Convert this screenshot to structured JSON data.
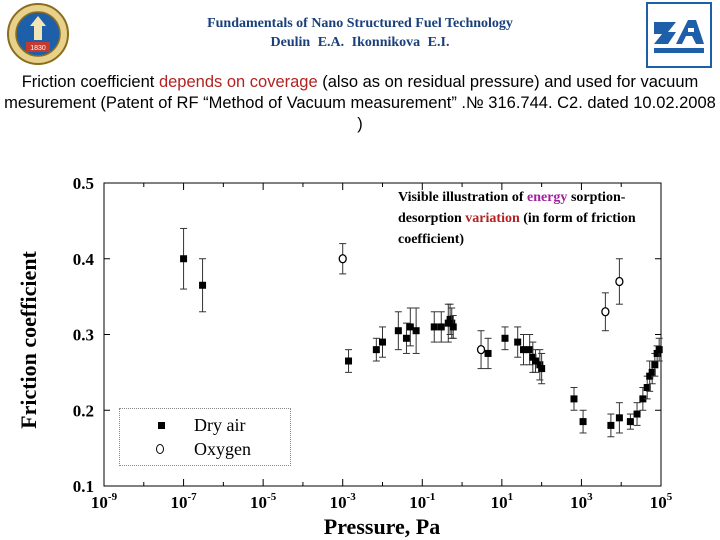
{
  "header": {
    "line1": "Fundamentals of Nano Structured Fuel Technology",
    "line2": "Deulin E.A. Ikonnikova E.I."
  },
  "logo_left": {
    "text": "1830"
  },
  "colors": {
    "header": "#1a3f7a",
    "highlight": "#b32222",
    "annotation_energy": "#a21e9a",
    "logo_blue": "#1d5fa8"
  },
  "description": {
    "t1": "Friction coefficient ",
    "t2": "depends on coverage",
    "t3": " (also as on residual pressure) and used for vacuum mesurement (Patent of RF “Method of  Vacuum measurement” .№ 316.744. C2. dated 10.02.2008 )"
  },
  "annotation": {
    "a1": "Visible illustration of ",
    "a2": "energy",
    "a3": " sorption-desorption ",
    "a4": "variation",
    "a5": " (in form of friction coefficient)"
  },
  "chart_data": {
    "type": "scatter",
    "xlabel": "Pressure, Pa",
    "ylabel": "Friction coefficient",
    "x_scale": "log",
    "xlim": [
      1e-09,
      100000.0
    ],
    "ylim": [
      0.1,
      0.5
    ],
    "x_ticks": [
      {
        "base": "10",
        "exp": "-9",
        "value": -9
      },
      {
        "base": "10",
        "exp": "-7",
        "value": -7
      },
      {
        "base": "10",
        "exp": "-5",
        "value": -5
      },
      {
        "base": "10",
        "exp": "-3",
        "value": -3
      },
      {
        "base": "10",
        "exp": "-1",
        "value": -1
      },
      {
        "base": "10",
        "exp": "1",
        "value": 1
      },
      {
        "base": "10",
        "exp": "3",
        "value": 3
      },
      {
        "base": "10",
        "exp": "5",
        "value": 5
      }
    ],
    "y_ticks": [
      "0.1",
      "0.2",
      "0.3",
      "0.4",
      "0.5"
    ],
    "grid": false,
    "legend": {
      "position": "bottom-left",
      "entries": [
        "Dry air",
        "Oxygen"
      ]
    },
    "series": [
      {
        "name": "Dry air",
        "marker": "square",
        "points": [
          [
            1e-07,
            0.4,
            0.04
          ],
          [
            3e-07,
            0.365,
            0.035
          ],
          [
            0.0014,
            0.265,
            0.015
          ],
          [
            0.007,
            0.28,
            0.015
          ],
          [
            0.01,
            0.29,
            0.02
          ],
          [
            0.025,
            0.305,
            0.025
          ],
          [
            0.04,
            0.295,
            0.02
          ],
          [
            0.05,
            0.31,
            0.025
          ],
          [
            0.07,
            0.305,
            0.03
          ],
          [
            0.2,
            0.31,
            0.02
          ],
          [
            0.3,
            0.31,
            0.02
          ],
          [
            0.45,
            0.315,
            0.025
          ],
          [
            0.5,
            0.32,
            0.02
          ],
          [
            0.55,
            0.315,
            0.02
          ],
          [
            0.6,
            0.31,
            0.015
          ],
          [
            4.5,
            0.275,
            0.02
          ],
          [
            12,
            0.295,
            0.015
          ],
          [
            25,
            0.29,
            0.02
          ],
          [
            35,
            0.28,
            0.02
          ],
          [
            50,
            0.28,
            0.02
          ],
          [
            60,
            0.27,
            0.02
          ],
          [
            70,
            0.265,
            0.015
          ],
          [
            90,
            0.26,
            0.02
          ],
          [
            100,
            0.255,
            0.02
          ],
          [
            650,
            0.215,
            0.015
          ],
          [
            1100,
            0.185,
            0.015
          ],
          [
            5500,
            0.18,
            0.015
          ],
          [
            9000,
            0.19,
            0.02
          ],
          [
            17000,
            0.185,
            0.01
          ],
          [
            25000,
            0.195,
            0.015
          ],
          [
            35000,
            0.215,
            0.015
          ],
          [
            45000,
            0.23,
            0.015
          ],
          [
            52000,
            0.245,
            0.02
          ],
          [
            60000,
            0.25,
            0.015
          ],
          [
            70000,
            0.26,
            0.015
          ],
          [
            80000,
            0.275,
            0.01
          ],
          [
            90000,
            0.28,
            0.015
          ]
        ]
      },
      {
        "name": "Oxygen",
        "marker": "circle",
        "points": [
          [
            0.001,
            0.4,
            0.02
          ],
          [
            3.0,
            0.28,
            0.025
          ],
          [
            4000.0,
            0.33,
            0.025
          ],
          [
            9000.0,
            0.37,
            0.03
          ]
        ]
      }
    ]
  }
}
